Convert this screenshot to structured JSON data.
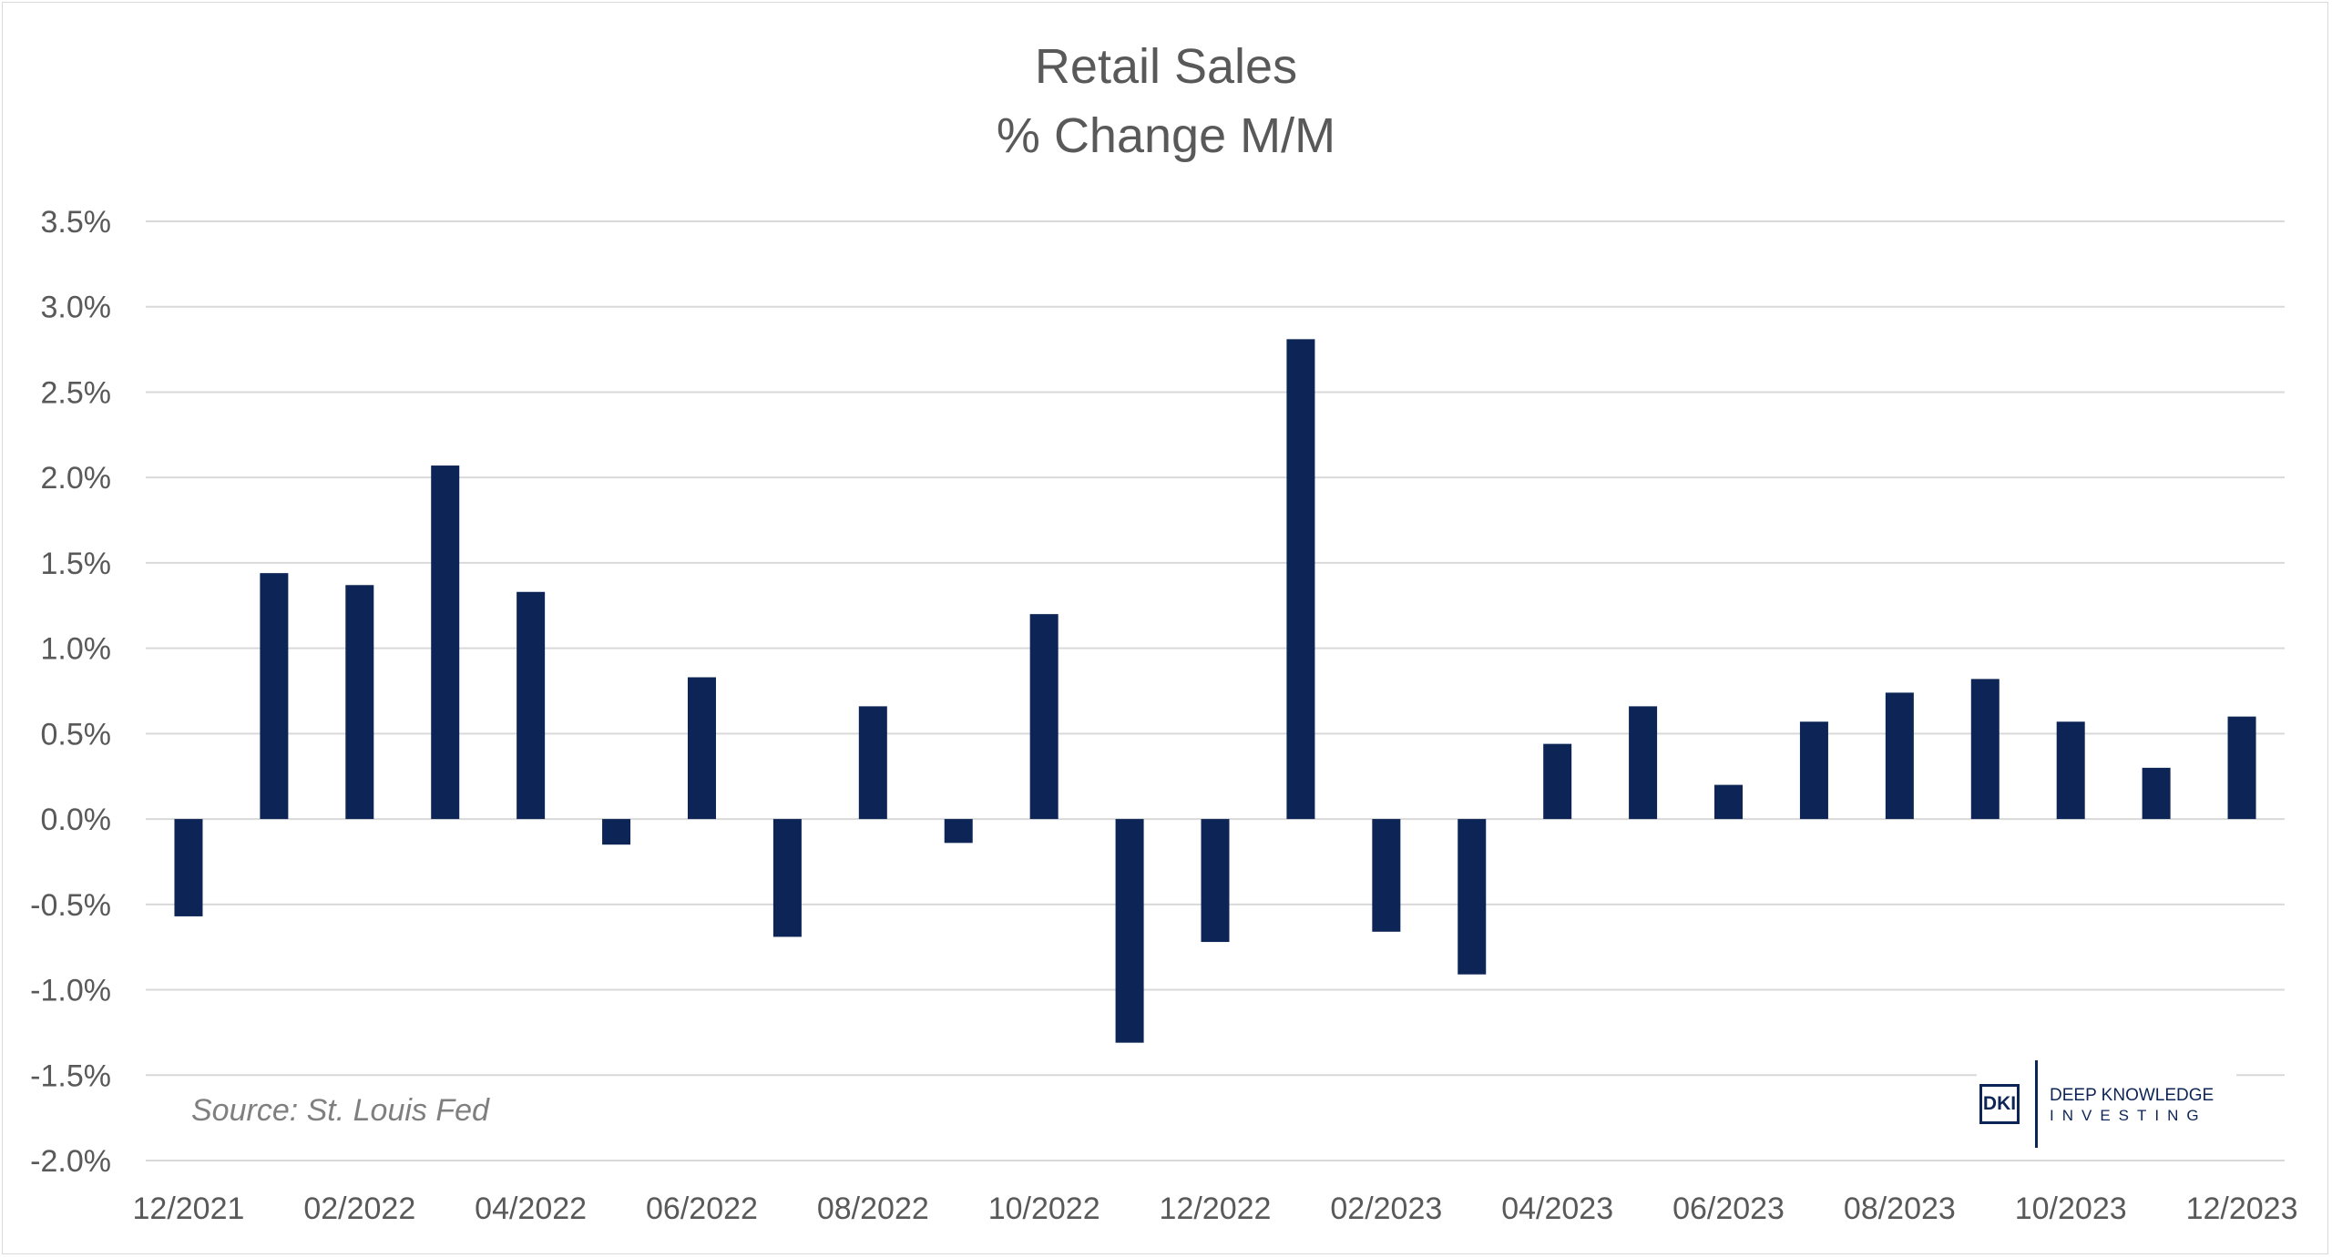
{
  "chart_data": {
    "type": "bar",
    "title": "Retail Sales",
    "subtitle": "% Change M/M",
    "xlabel": "",
    "ylabel": "",
    "categories": [
      "12/2021",
      "01/2022",
      "02/2022",
      "03/2022",
      "04/2022",
      "05/2022",
      "06/2022",
      "07/2022",
      "08/2022",
      "09/2022",
      "10/2022",
      "11/2022",
      "12/2022",
      "01/2023",
      "02/2023",
      "03/2023",
      "04/2023",
      "05/2023",
      "06/2023",
      "07/2023",
      "08/2023",
      "09/2023",
      "10/2023",
      "11/2023",
      "12/2023"
    ],
    "x_tick_labels": [
      "12/2021",
      "02/2022",
      "04/2022",
      "06/2022",
      "08/2022",
      "10/2022",
      "12/2022",
      "02/2023",
      "04/2023",
      "06/2023",
      "08/2023",
      "10/2023",
      "12/2023"
    ],
    "values": [
      -0.57,
      1.44,
      1.37,
      2.07,
      1.33,
      -0.15,
      0.83,
      -0.69,
      0.66,
      -0.14,
      1.2,
      -1.31,
      -0.72,
      2.81,
      -0.66,
      -0.91,
      0.44,
      0.66,
      0.2,
      0.57,
      0.74,
      0.82,
      0.57,
      0.3,
      0.6
    ],
    "ylim": [
      -2.0,
      3.5
    ],
    "y_tick_values": [
      -2.0,
      -1.5,
      -1.0,
      -0.5,
      0.0,
      0.5,
      1.0,
      1.5,
      2.0,
      2.5,
      3.0,
      3.5
    ],
    "y_tick_labels": [
      "-2.0%",
      "-1.5%",
      "-1.0%",
      "-0.5%",
      "0.0%",
      "0.5%",
      "1.0%",
      "1.5%",
      "2.0%",
      "2.5%",
      "3.0%",
      "3.5%"
    ],
    "y_unit": "%",
    "grid": true,
    "legend": "none",
    "bar_color": "#0d2556",
    "annotation": "Source: St. Louis Fed"
  },
  "logo": {
    "mark": "DKI",
    "line1": "DEEP KNOWLEDGE",
    "line2": "INVESTING"
  }
}
